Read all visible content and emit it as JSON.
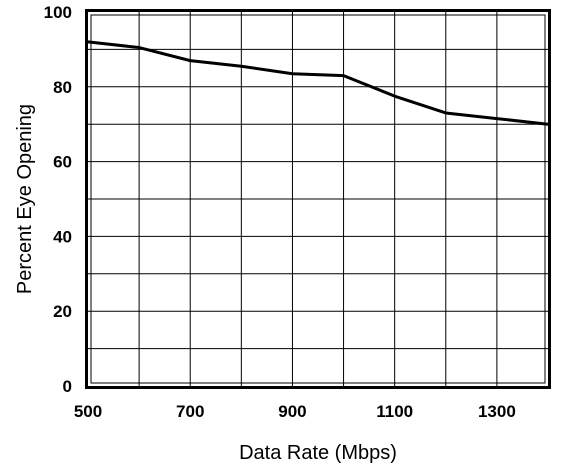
{
  "chart_data": {
    "type": "line",
    "xlabel": "Data Rate (Mbps)",
    "ylabel": "Percent Eye Opening",
    "xlim": [
      500,
      1400
    ],
    "ylim": [
      0,
      100
    ],
    "x_ticks": [
      500,
      700,
      900,
      1100,
      1300
    ],
    "x_tick_labels": [
      "500",
      "700",
      "900",
      "1100",
      "1300"
    ],
    "y_ticks": [
      0,
      20,
      40,
      60,
      80,
      100
    ],
    "y_tick_labels": [
      "0",
      "20",
      "40",
      "60",
      "80",
      "100"
    ],
    "x_grid": [
      500,
      600,
      700,
      800,
      900,
      1000,
      1100,
      1200,
      1300,
      1400
    ],
    "y_grid": [
      0,
      10,
      20,
      30,
      40,
      50,
      60,
      70,
      80,
      90,
      100
    ],
    "grid": true,
    "series": [
      {
        "x": [
          500,
          600,
          700,
          800,
          900,
          1000,
          1100,
          1200,
          1300,
          1400
        ],
        "y": [
          92,
          90.5,
          87,
          85.5,
          83.5,
          83,
          77.5,
          73,
          71.5,
          70
        ]
      }
    ]
  }
}
